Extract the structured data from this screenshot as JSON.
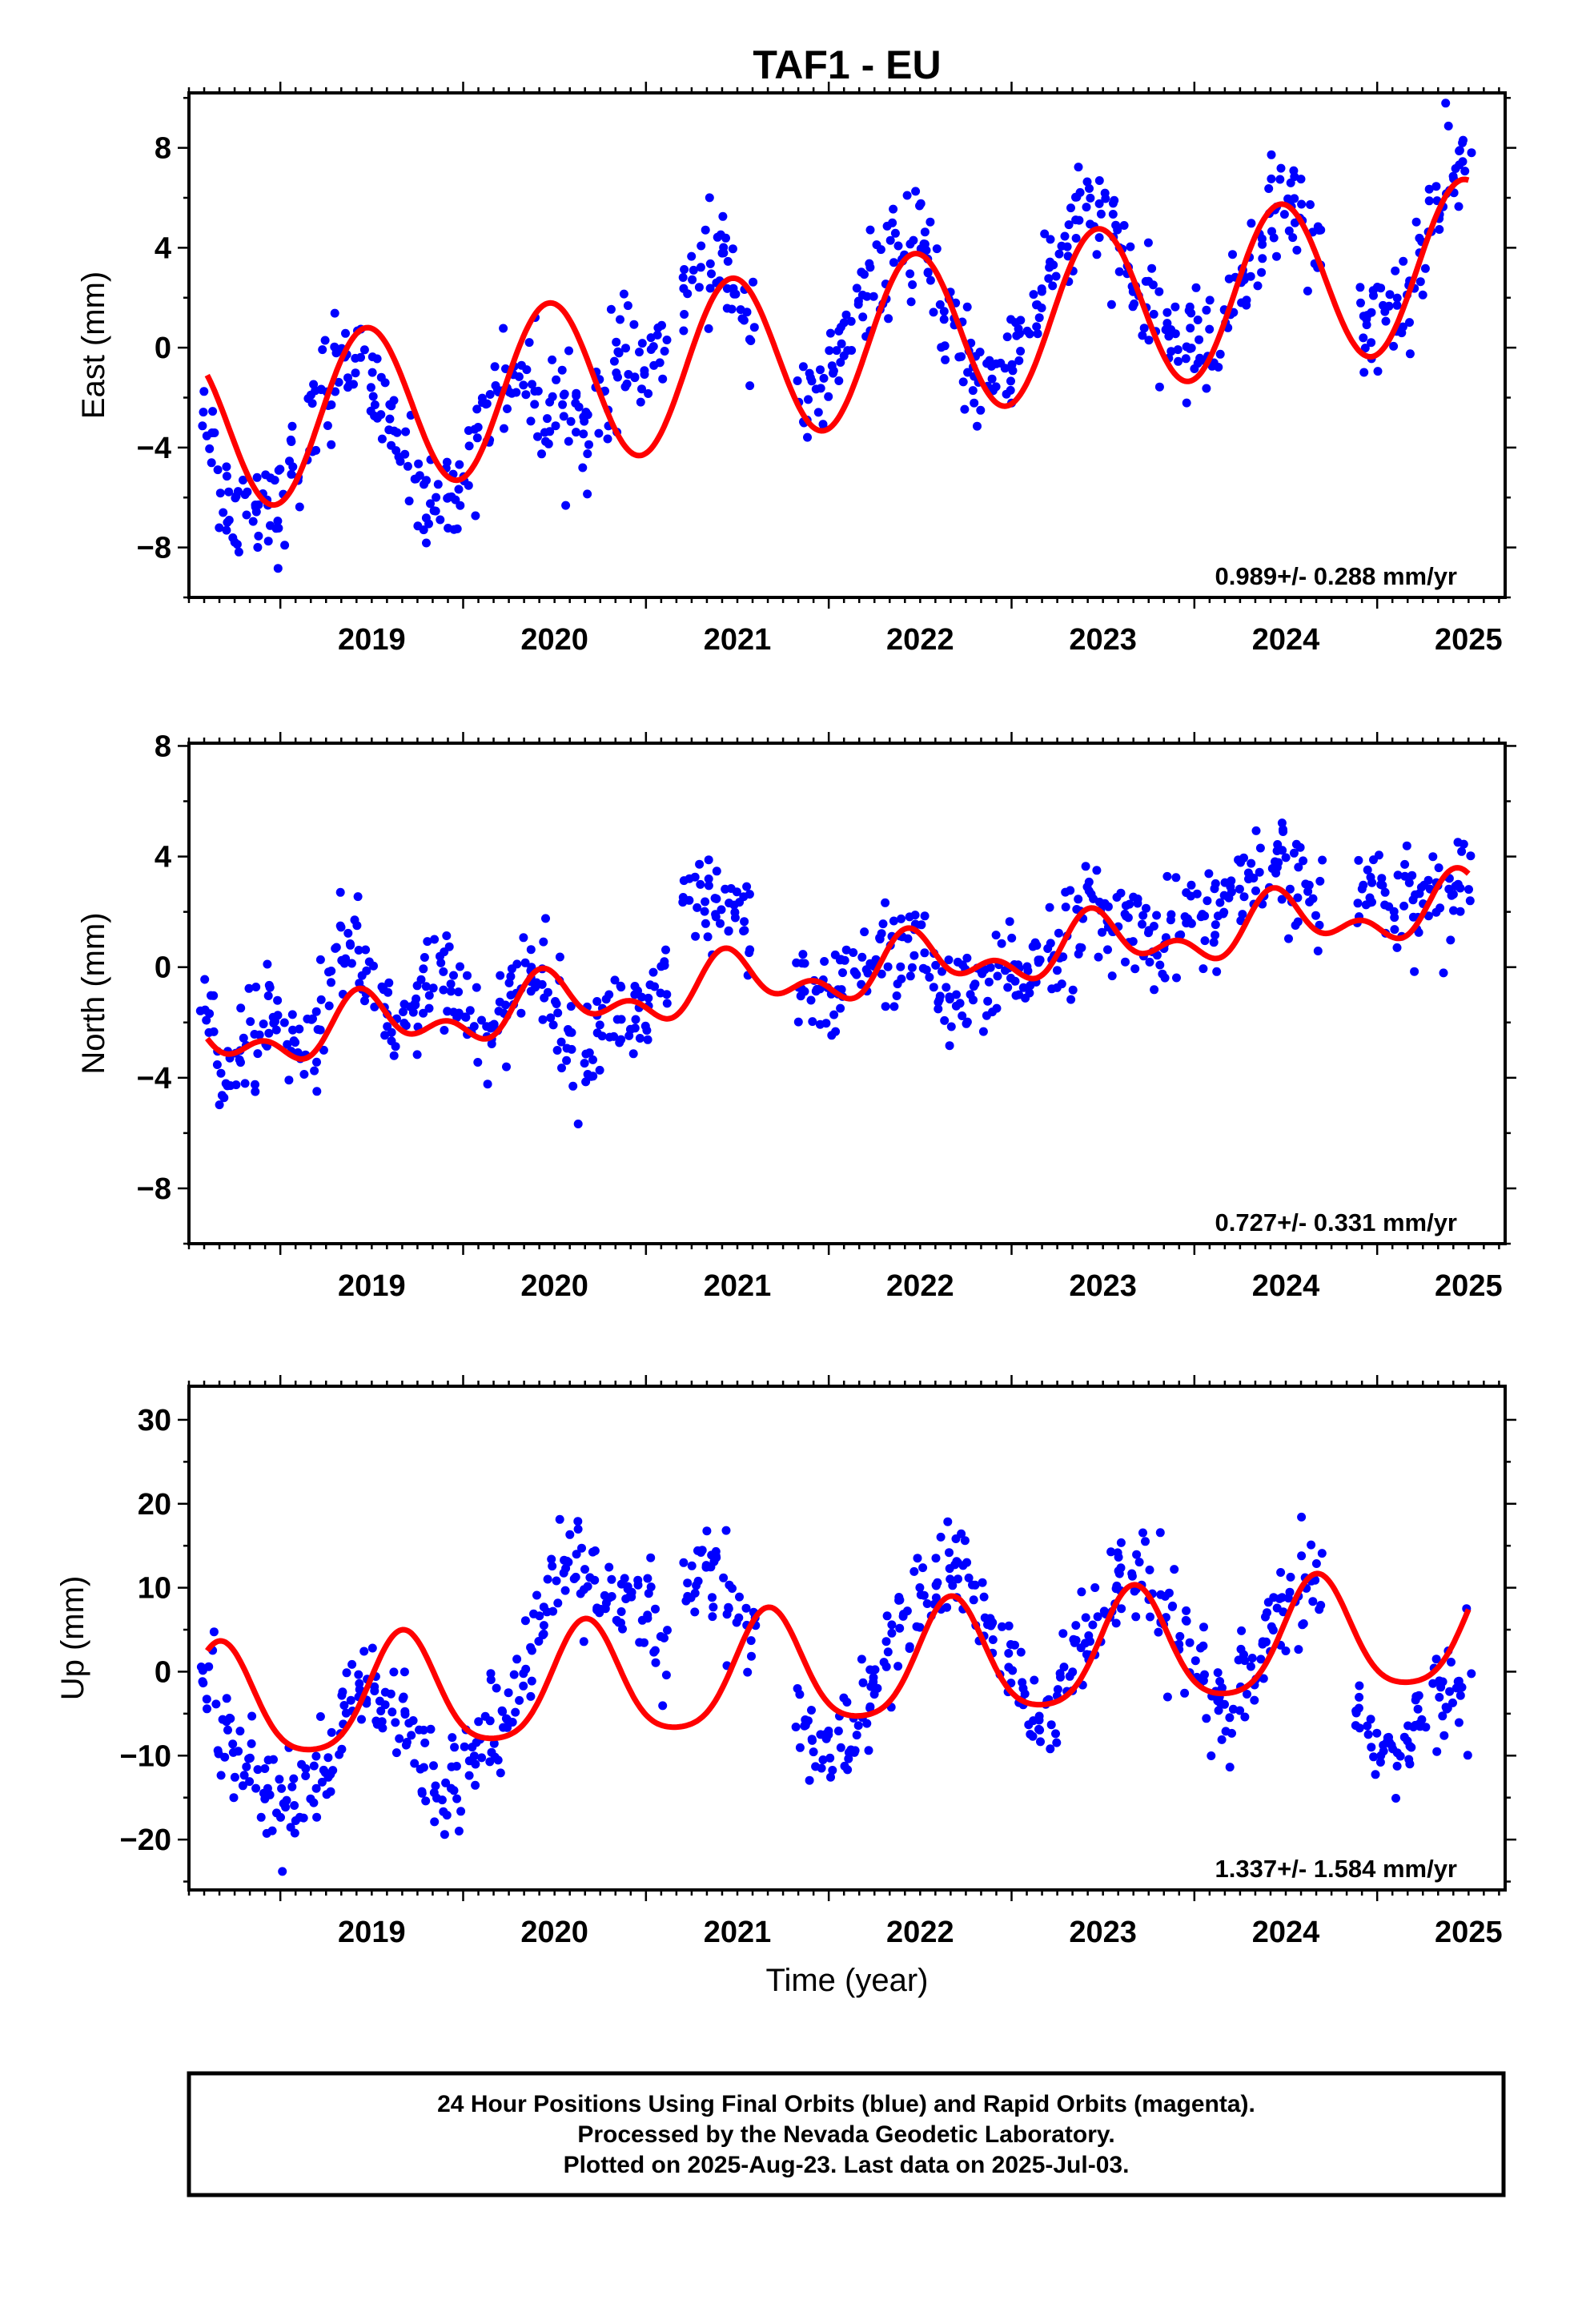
{
  "figure": {
    "title": "TAF1 - EU",
    "xlabel": "Time (year)",
    "footer": [
      "24 Hour Positions Using Final Orbits (blue) and Rapid Orbits (magenta).",
      "Processed by the Nevada Geodetic Laboratory.",
      "Plotted on 2025-Aug-23. Last data on 2025-Jul-03."
    ],
    "colors": {
      "points": "#0000ff",
      "fit": "#ff0000",
      "frame": "#000000"
    }
  },
  "chart_data": [
    {
      "type": "scatter",
      "component": "east",
      "ylabel": "East (mm)",
      "rate_label": "0.989+/- 0.288 mm/yr",
      "xlim": [
        2018.5,
        2025.7
      ],
      "ylim": [
        -10,
        10.2
      ],
      "xticks": [
        2019,
        2020,
        2021,
        2022,
        2023,
        2024,
        2025
      ],
      "yticks": [
        -8,
        -4,
        0,
        4,
        8
      ],
      "series": [
        {
          "name": "",
          "style": "points",
          "x": [
            2018.6,
            2018.68,
            2018.76,
            2018.84,
            2018.92,
            2019.0,
            2019.08,
            2019.16,
            2019.24,
            2019.32,
            2019.4,
            2019.48,
            2019.56,
            2019.64,
            2019.72,
            2019.8,
            2019.88,
            2019.96,
            2020.04,
            2020.12,
            2020.2,
            2020.28,
            2020.36,
            2020.44,
            2020.52,
            2020.6,
            2020.68,
            2020.76,
            2020.84,
            2020.92,
            2021.0,
            2021.08,
            2021.24,
            2021.32,
            2021.4,
            2021.48,
            2021.56,
            2021.86,
            2021.94,
            2022.02,
            2022.1,
            2022.18,
            2022.26,
            2022.34,
            2022.42,
            2022.5,
            2022.58,
            2022.66,
            2022.74,
            2022.82,
            2022.9,
            2022.98,
            2023.06,
            2023.14,
            2023.22,
            2023.3,
            2023.38,
            2023.46,
            2023.54,
            2023.62,
            2023.7,
            2023.78,
            2023.86,
            2023.94,
            2024.02,
            2024.1,
            2024.18,
            2024.26,
            2024.34,
            2024.42,
            2024.5,
            2024.58,
            2024.66,
            2024.92,
            2025.0,
            2025.08,
            2025.16,
            2025.24,
            2025.32,
            2025.4,
            2025.48
          ],
          "y": [
            -3.0,
            -5.8,
            -6.6,
            -6.2,
            -5.9,
            -6.4,
            -4.8,
            -3.3,
            -1.6,
            -0.3,
            -0.6,
            -1.4,
            -2.4,
            -3.8,
            -4.9,
            -5.9,
            -6.3,
            -5.7,
            -4.4,
            -2.6,
            -1.4,
            -0.9,
            -1.7,
            -2.5,
            -2.0,
            -2.8,
            -3.4,
            -2.1,
            -0.8,
            -0.6,
            -0.9,
            -0.3,
            2.3,
            3.2,
            3.5,
            2.8,
            1.4,
            -2.5,
            -2.2,
            -0.9,
            0.4,
            1.7,
            2.5,
            3.6,
            4.0,
            3.9,
            2.6,
            0.9,
            -0.6,
            -1.3,
            -1.2,
            -0.8,
            0.6,
            1.8,
            3.3,
            4.2,
            5.1,
            5.3,
            4.6,
            3.4,
            2.0,
            1.1,
            0.6,
            0.2,
            0.0,
            0.3,
            1.3,
            2.8,
            4.2,
            5.2,
            5.9,
            5.4,
            4.1,
            1.1,
            0.9,
            1.4,
            2.2,
            3.5,
            5.3,
            6.6,
            7.4
          ]
        },
        {
          "name": "",
          "style": "fit",
          "model": {
            "t0": 2022.1,
            "offset": 0.1,
            "rate": 0.989,
            "amp_annual": 3.3,
            "peak_annual": 2022.47,
            "amp_semi": 0.0,
            "peak_semi": 2022.0
          }
        }
      ]
    },
    {
      "type": "scatter",
      "component": "north",
      "ylabel": "North (mm)",
      "rate_label": "0.727+/- 0.331 mm/yr",
      "xlim": [
        2018.5,
        2025.7
      ],
      "ylim": [
        -10,
        8.1
      ],
      "xticks": [
        2019,
        2020,
        2021,
        2022,
        2023,
        2024,
        2025
      ],
      "yticks": [
        -8,
        -4,
        0,
        4,
        8
      ],
      "series": [
        {
          "name": "",
          "style": "points",
          "x": [
            2018.6,
            2018.68,
            2018.76,
            2018.84,
            2018.92,
            2019.0,
            2019.08,
            2019.16,
            2019.24,
            2019.32,
            2019.4,
            2019.48,
            2019.56,
            2019.64,
            2019.72,
            2019.8,
            2019.88,
            2019.96,
            2020.04,
            2020.12,
            2020.2,
            2020.28,
            2020.36,
            2020.44,
            2020.52,
            2020.6,
            2020.68,
            2020.76,
            2020.84,
            2020.92,
            2021.0,
            2021.08,
            2021.24,
            2021.32,
            2021.4,
            2021.48,
            2021.56,
            2021.86,
            2021.94,
            2022.02,
            2022.1,
            2022.18,
            2022.26,
            2022.34,
            2022.42,
            2022.5,
            2022.58,
            2022.66,
            2022.74,
            2022.82,
            2022.9,
            2022.98,
            2023.06,
            2023.14,
            2023.22,
            2023.3,
            2023.38,
            2023.46,
            2023.54,
            2023.62,
            2023.7,
            2023.78,
            2023.86,
            2023.94,
            2024.02,
            2024.1,
            2024.18,
            2024.26,
            2024.34,
            2024.42,
            2024.5,
            2024.58,
            2024.66,
            2024.92,
            2025.0,
            2025.08,
            2025.16,
            2025.24,
            2025.32,
            2025.4,
            2025.48
          ],
          "y": [
            -1.8,
            -3.2,
            -3.6,
            -2.6,
            -1.9,
            -2.2,
            -3.1,
            -2.6,
            -1.2,
            0.4,
            1.0,
            -0.3,
            -1.4,
            -2.0,
            -1.6,
            -0.5,
            0.3,
            -0.6,
            -2.0,
            -2.6,
            -1.8,
            -0.8,
            0.2,
            -0.4,
            -1.6,
            -3.3,
            -3.1,
            -2.0,
            -1.6,
            -1.9,
            -1.7,
            -1.0,
            2.0,
            2.3,
            2.1,
            1.5,
            0.9,
            -0.6,
            -0.8,
            -1.0,
            -0.5,
            0.2,
            0.3,
            0.4,
            0.8,
            0.6,
            -0.8,
            -1.2,
            -1.4,
            -1.0,
            -0.9,
            -0.4,
            0.0,
            0.4,
            0.7,
            1.2,
            1.7,
            1.8,
            1.4,
            1.5,
            1.4,
            1.1,
            1.3,
            1.7,
            1.6,
            2.0,
            2.4,
            2.6,
            2.9,
            3.3,
            3.4,
            2.9,
            2.6,
            2.4,
            2.8,
            2.6,
            2.5,
            2.4,
            2.6,
            2.8,
            2.9
          ]
        },
        {
          "name": "",
          "style": "fit",
          "model": {
            "t0": 2022.1,
            "offset": -0.2,
            "rate": 0.727,
            "amp_annual": 0.8,
            "peak_annual": 2022.47,
            "amp_semi": 0.6,
            "peak_semi": 2022.42
          }
        }
      ]
    },
    {
      "type": "scatter",
      "component": "up",
      "ylabel": "Up (mm)",
      "rate_label": "1.337+/- 1.584 mm/yr",
      "xlim": [
        2018.5,
        2025.7
      ],
      "ylim": [
        -26,
        34
      ],
      "xticks": [
        2019,
        2020,
        2021,
        2022,
        2023,
        2024,
        2025
      ],
      "yticks": [
        -20,
        -10,
        0,
        10,
        20,
        30
      ],
      "series": [
        {
          "name": "",
          "style": "points",
          "x": [
            2018.6,
            2018.68,
            2018.76,
            2018.84,
            2018.92,
            2019.0,
            2019.08,
            2019.16,
            2019.24,
            2019.32,
            2019.4,
            2019.48,
            2019.56,
            2019.64,
            2019.72,
            2019.8,
            2019.88,
            2019.96,
            2020.04,
            2020.12,
            2020.2,
            2020.28,
            2020.36,
            2020.44,
            2020.52,
            2020.6,
            2020.68,
            2020.76,
            2020.84,
            2020.92,
            2021.0,
            2021.08,
            2021.24,
            2021.32,
            2021.4,
            2021.48,
            2021.56,
            2021.86,
            2021.94,
            2022.02,
            2022.1,
            2022.18,
            2022.26,
            2022.34,
            2022.42,
            2022.5,
            2022.58,
            2022.66,
            2022.74,
            2022.82,
            2022.9,
            2022.98,
            2023.06,
            2023.14,
            2023.22,
            2023.3,
            2023.38,
            2023.46,
            2023.54,
            2023.62,
            2023.7,
            2023.78,
            2023.86,
            2023.94,
            2024.02,
            2024.1,
            2024.18,
            2024.26,
            2024.34,
            2024.42,
            2024.5,
            2024.58,
            2024.66,
            2024.92,
            2025.0,
            2025.08,
            2025.16,
            2025.24,
            2025.32,
            2025.4,
            2025.48
          ],
          "y": [
            2,
            -6,
            -9,
            -11,
            -14,
            -15,
            -16,
            -14,
            -11,
            -8,
            -4,
            -2,
            -4,
            -6,
            -8,
            -11,
            -13,
            -12,
            -10,
            -8,
            -5,
            -2,
            2,
            6,
            10,
            13,
            11,
            9,
            6,
            8,
            7,
            2,
            10,
            12,
            11,
            8,
            4,
            -6,
            -8,
            -9,
            -8,
            -6,
            -2,
            2,
            6,
            9,
            11,
            12,
            11,
            8,
            5,
            1,
            -4,
            -6,
            -4,
            0,
            3,
            5,
            7,
            10,
            11,
            9,
            6,
            3,
            -1,
            -4,
            -5,
            -3,
            0,
            4,
            7,
            9,
            11,
            -5,
            -8,
            -10,
            -9,
            -6,
            -4,
            -2,
            0
          ]
        },
        {
          "name": "",
          "style": "fit",
          "model": {
            "t0": 2022.1,
            "offset": 0.25,
            "rate": 1.337,
            "amp_annual": 6.8,
            "peak_annual": 2022.67,
            "amp_semi": 1.2,
            "peak_semi": 2022.67
          }
        }
      ]
    }
  ]
}
